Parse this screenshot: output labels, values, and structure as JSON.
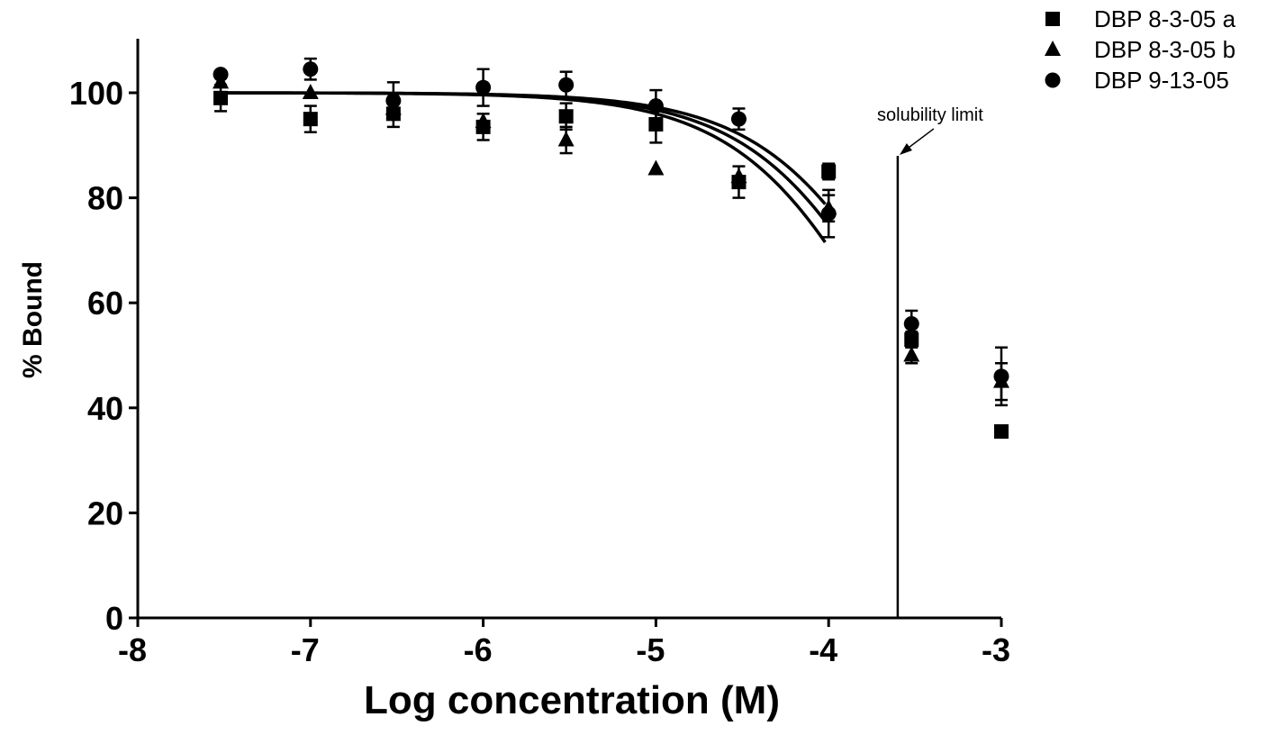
{
  "chart_data": {
    "type": "scatter",
    "title": "",
    "xlabel": "Log concentration (M)",
    "ylabel": "% Bound",
    "xlim": [
      -8,
      -3
    ],
    "ylim": [
      0,
      110
    ],
    "xticks": [
      "-8",
      "-7",
      "-6",
      "-5",
      "-4",
      "-3"
    ],
    "yticks": [
      "0",
      "20",
      "40",
      "60",
      "80",
      "100"
    ],
    "grid": false,
    "legend_position": "top-right",
    "annotation": {
      "text": "solubility limit",
      "x": -3.6
    },
    "series": [
      {
        "name": "DBP 8-3-05 a",
        "marker": "square",
        "x": [
          -7.52,
          -7.0,
          -6.52,
          -6.0,
          -5.52,
          -5.0,
          -4.52,
          -4.0,
          -3.52,
          -3.0
        ],
        "y": [
          99,
          95,
          96,
          93.5,
          95.5,
          94,
          83,
          85,
          53,
          35.5
        ],
        "err": [
          2.5,
          2.5,
          2.5,
          2.5,
          2.5,
          3.5,
          3.0,
          1.5,
          1.5,
          1.0
        ]
      },
      {
        "name": "DBP 8-3-05 b",
        "marker": "triangle",
        "x": [
          -7.52,
          -7.0,
          -6.52,
          -6.0,
          -5.52,
          -5.0,
          -4.52,
          -4.0,
          -3.52,
          -3.0
        ],
        "y": [
          102,
          100,
          97,
          94.5,
          91,
          85.5,
          84,
          78,
          50,
          45
        ],
        "err": [
          0,
          0,
          0,
          0,
          2.5,
          0,
          0,
          2.5,
          1.5,
          3.5
        ]
      },
      {
        "name": "DBP 9-13-05",
        "marker": "circle",
        "x": [
          -7.52,
          -7.0,
          -6.52,
          -6.0,
          -5.52,
          -5.0,
          -4.52,
          -4.0,
          -3.52,
          -3.0
        ],
        "y": [
          103.5,
          104.5,
          98.5,
          101,
          101.5,
          97.5,
          95,
          77,
          56,
          46
        ],
        "err": [
          0,
          2.0,
          3.5,
          3.5,
          2.5,
          3.0,
          2.0,
          4.5,
          2.5,
          5.5
        ]
      }
    ],
    "fit_curves": [
      {
        "top": 100,
        "logIC50": -3.45,
        "hill": -1
      },
      {
        "top": 100,
        "logIC50": -3.53,
        "hill": -1
      },
      {
        "top": 100,
        "logIC50": -3.62,
        "hill": -1
      }
    ]
  }
}
